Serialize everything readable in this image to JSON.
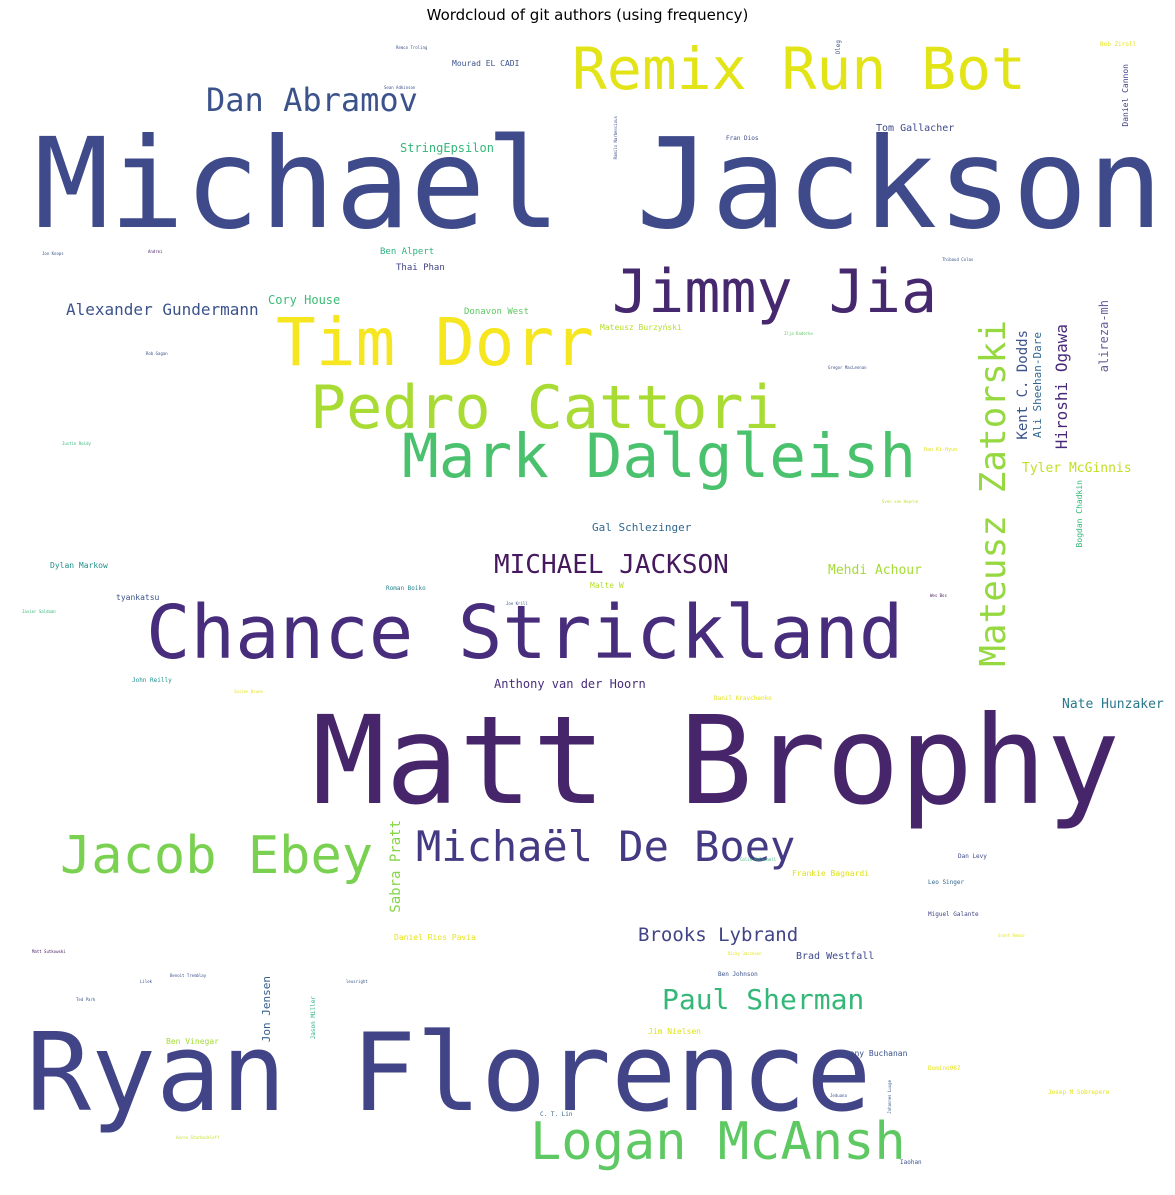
{
  "title": "Wordcloud of git authors (using frequency)",
  "words": [
    {
      "text": "Michael Jackson",
      "color": "#3f4a8a"
    },
    {
      "text": "Matt Brophy",
      "color": "#46256b"
    },
    {
      "text": "Ryan Florence",
      "color": "#414487"
    },
    {
      "text": "Chance Strickland",
      "color": "#472d7b"
    },
    {
      "text": "Remix Run Bot",
      "color": "#e2e418"
    },
    {
      "text": "Tim Dorr",
      "color": "#f6e620"
    },
    {
      "text": "Jimmy Jia",
      "color": "#46286e"
    },
    {
      "text": "Pedro Cattori",
      "color": "#a8db34"
    },
    {
      "text": "Mark Dalgleish",
      "color": "#4ac16d"
    },
    {
      "text": "Logan McAnsh",
      "color": "#5ec962"
    },
    {
      "text": "Jacob Ebey",
      "color": "#7ad151"
    },
    {
      "text": "Michaël De Boey",
      "color": "#443a83"
    },
    {
      "text": "Dan Abramov",
      "color": "#3b528b"
    },
    {
      "text": "Mateusz Zatorski",
      "color": "#95d840"
    },
    {
      "text": "MICHAEL JACKSON",
      "color": "#46195e"
    },
    {
      "text": "Paul Sherman",
      "color": "#35b779"
    },
    {
      "text": "Brooks Lybrand",
      "color": "#414487"
    },
    {
      "text": "Alexander Gundermann",
      "color": "#3b528b"
    },
    {
      "text": "Hiroshi Ogawa",
      "color": "#482878"
    },
    {
      "text": "Kent C. Dodds",
      "color": "#3b528b"
    },
    {
      "text": "Ali Sheehan-Dare",
      "color": "#31688e"
    },
    {
      "text": "alireza-mh",
      "color": "#6a5d9b"
    },
    {
      "text": "Tyler McGinnis",
      "color": "#c2df23"
    },
    {
      "text": "Nate Hunzaker",
      "color": "#2a788e"
    },
    {
      "text": "Sabra Pratt",
      "color": "#86d549"
    },
    {
      "text": "Cory House",
      "color": "#3bbb75"
    },
    {
      "text": "StringEpsilon",
      "color": "#35b779"
    },
    {
      "text": "Mehdi Achour",
      "color": "#a5db36"
    },
    {
      "text": "Gal Schlezinger",
      "color": "#31688e"
    },
    {
      "text": "Anthony van der Hoorn",
      "color": "#472d7b"
    },
    {
      "text": "Tom Gallacher",
      "color": "#3f4a8a"
    },
    {
      "text": "Brad Westfall",
      "color": "#3e4989"
    },
    {
      "text": "Jon Jensen",
      "color": "#355f8d"
    },
    {
      "text": "Ben Alpert",
      "color": "#2db27d"
    },
    {
      "text": "Thai Phan",
      "color": "#414487"
    },
    {
      "text": "Donavon West",
      "color": "#5ec962"
    },
    {
      "text": "Mateusz Burzyński",
      "color": "#b5de2b"
    },
    {
      "text": "Daniel Cannon",
      "color": "#414487"
    },
    {
      "text": "Bogdan Chadkin",
      "color": "#35b779"
    },
    {
      "text": "Jonny Buchanan",
      "color": "#3b528b"
    },
    {
      "text": "Dylan Markow",
      "color": "#21918c"
    },
    {
      "text": "tyankatsu",
      "color": "#3b528b"
    },
    {
      "text": "Mourad EL CADI",
      "color": "#3b528b"
    },
    {
      "text": "Frankie Bagnardi",
      "color": "#dde318"
    },
    {
      "text": "Malte W",
      "color": "#b5de2b"
    },
    {
      "text": "Jim Nielsen",
      "color": "#dde318"
    },
    {
      "text": "Ben Vinegar",
      "color": "#a5db36"
    },
    {
      "text": "Daniel Rios Pavia",
      "color": "#e5e419"
    },
    {
      "text": "Danil Kravchenko",
      "color": "#e5e419"
    },
    {
      "text": "John Reilly",
      "color": "#21918c"
    },
    {
      "text": "Ben Johnson",
      "color": "#3b528b"
    },
    {
      "text": "Roman Boiko",
      "color": "#26828e"
    },
    {
      "text": "Leo Singer",
      "color": "#31688e"
    },
    {
      "text": "Miguel Galante",
      "color": "#414487"
    },
    {
      "text": "Dan Levy",
      "color": "#3e4989"
    },
    {
      "text": "Fran Dios",
      "color": "#3e4989"
    },
    {
      "text": "Bob Ziroll",
      "color": "#e5e419"
    },
    {
      "text": "C. T. Lin",
      "color": "#31688e"
    },
    {
      "text": "Jason Miller",
      "color": "#2db27d"
    },
    {
      "text": "Oleg",
      "color": "#3b528b"
    },
    {
      "text": "Domino987",
      "color": "#e5e419"
    },
    {
      "text": "Josep M Sobrepere",
      "color": "#e5e419"
    },
    {
      "text": "Iaohan",
      "color": "#3b528b"
    },
    {
      "text": "Remco Troling",
      "color": "#3b528b"
    },
    {
      "text": "Sean Adkinson",
      "color": "#3b528b"
    },
    {
      "text": "Ramilo Narbencious",
      "color": "#3b528b"
    },
    {
      "text": "Jon Koops",
      "color": "#3b528b"
    },
    {
      "text": "Andrei",
      "color": "#46195e"
    },
    {
      "text": "Thibaud Colas",
      "color": "#3b528b"
    },
    {
      "text": "Ilja Daderko",
      "color": "#5ec962"
    },
    {
      "text": "Rob Gagan",
      "color": "#3b528b"
    },
    {
      "text": "Gregor MacLennan",
      "color": "#3b528b"
    },
    {
      "text": "Justin Reidy",
      "color": "#35b779"
    },
    {
      "text": "Dan Ki-Hyun",
      "color": "#e5e419"
    },
    {
      "text": "Sven van Hoprne",
      "color": "#c2df23"
    },
    {
      "text": "Javier Saldaan",
      "color": "#35b779"
    },
    {
      "text": "Joe Krill",
      "color": "#3b528b"
    },
    {
      "text": "Wes Bos",
      "color": "#46195e"
    },
    {
      "text": "Sailen Bruen",
      "color": "#e5e419"
    },
    {
      "text": "Colin McDonnell",
      "color": "#35b779"
    },
    {
      "text": "Matt Sutkowski",
      "color": "#46195e"
    },
    {
      "text": "Benoit Tremblay",
      "color": "#3b528b"
    },
    {
      "text": "Lilek",
      "color": "#3b528b"
    },
    {
      "text": "Ted Park",
      "color": "#3b528b"
    },
    {
      "text": "leusright",
      "color": "#3b528b"
    },
    {
      "text": "Ricky Jacckson",
      "color": "#e5e419"
    },
    {
      "text": "Grant Remco",
      "color": "#e5e419"
    },
    {
      "text": "Jeduana",
      "color": "#3b528b"
    },
    {
      "text": "Johannes Luuge",
      "color": "#3b528b"
    },
    {
      "text": "Aaron Starbeckloff",
      "color": "#c2df23"
    }
  ]
}
